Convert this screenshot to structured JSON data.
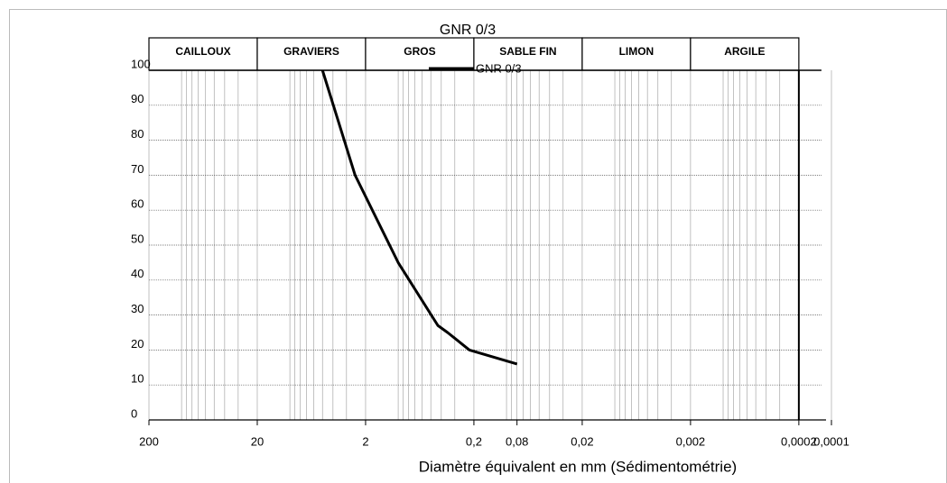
{
  "chart_data": {
    "type": "line",
    "title": "GNR 0/3",
    "xlabel": "Diamètre équivalent en mm (Sédimentométrie)",
    "zones": [
      "CAILLOUX",
      "GRAVIERS",
      "GROS",
      "SABLE  FIN",
      "LIMON",
      "ARGILE"
    ],
    "x": [
      5,
      2.5,
      1,
      0.43,
      0.35,
      0.22,
      0.08
    ],
    "series": [
      {
        "name": "GNR 0/3",
        "color": "#000000",
        "values": [
          100,
          70,
          45,
          27,
          25,
          20,
          16
        ]
      }
    ],
    "xscale": "log",
    "xlim": [
      200,
      0.0001
    ],
    "xticks": [
      200,
      20,
      2,
      {
        "value": 0.2,
        "label": "0,2"
      },
      {
        "value": 0.08,
        "label": "0,08"
      },
      {
        "value": 0.02,
        "label": "0,02"
      },
      {
        "value": 0.002,
        "label": "0,002"
      },
      {
        "value": 0.0002,
        "label": "0,0002"
      },
      {
        "value": 0.0001,
        "label": "0,0001"
      }
    ],
    "ylim": [
      0,
      100
    ],
    "yticks": [
      0,
      10,
      20,
      30,
      40,
      50,
      60,
      70,
      80,
      90,
      100
    ],
    "grid": true
  }
}
